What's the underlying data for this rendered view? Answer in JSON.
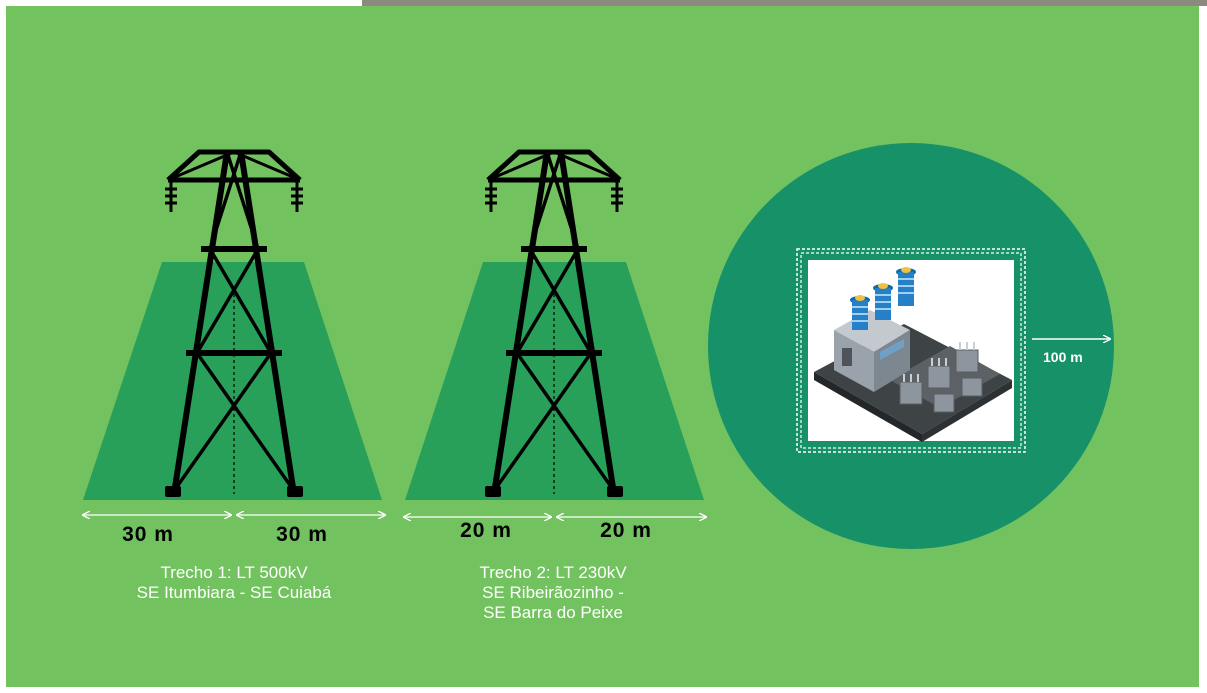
{
  "colors": {
    "background": "#73c260",
    "corridor": "#28a05a",
    "circle": "#179167",
    "tower": "#000000",
    "arrows": "#ffffff"
  },
  "towers": [
    {
      "dimension_left": "30 m",
      "dimension_right": "30 m",
      "caption_lines": [
        "Trecho 1: LT 500kV",
        "SE Itumbiara - SE Cuiabá"
      ]
    },
    {
      "dimension_left": "20 m",
      "dimension_right": "20 m",
      "caption_lines": [
        "Trecho 2: LT 230kV",
        "SE Ribeirãozinho -",
        "SE Barra do Peixe"
      ]
    }
  ],
  "substation": {
    "icon": "substation-icon",
    "radius_label": "100 m"
  }
}
